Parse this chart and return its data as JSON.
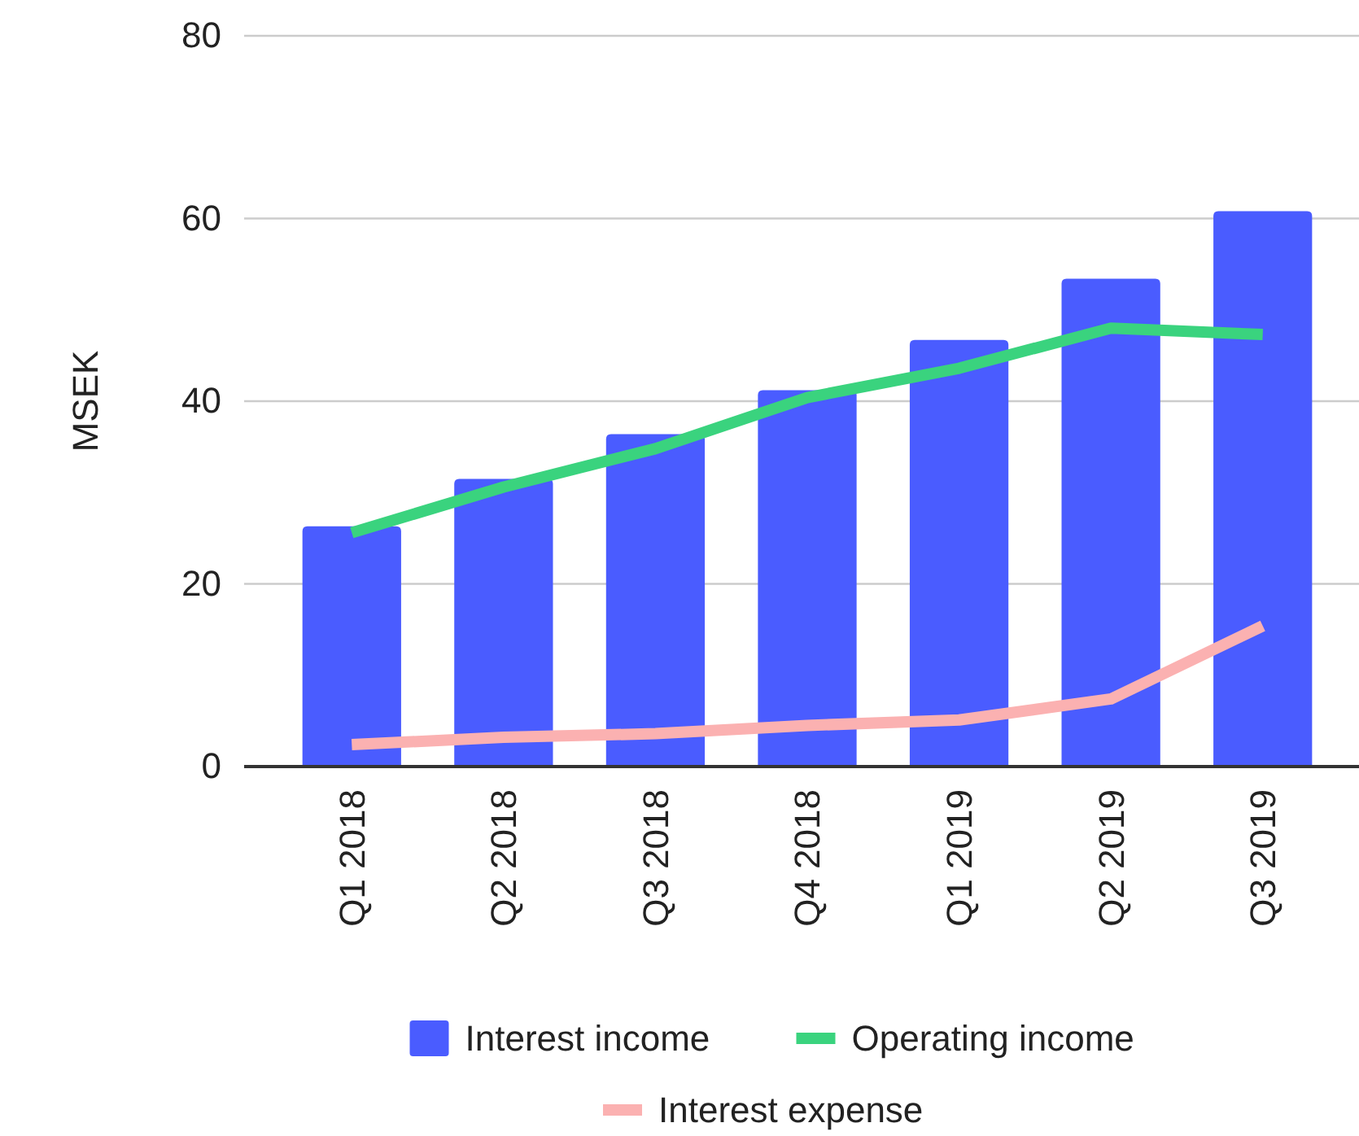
{
  "chart_data": {
    "type": "bar",
    "ylabel": "MSEK",
    "categories": [
      "Q1 2018",
      "Q2 2018",
      "Q3 2018",
      "Q4 2018",
      "Q1 2019",
      "Q2 2019",
      "Q3 2019"
    ],
    "series": [
      {
        "name": "Interest income",
        "color": "#4a5cff",
        "values": [
          26.3,
          31.5,
          36.4,
          41.2,
          46.7,
          53.4,
          60.8
        ]
      },
      {
        "name": "Operating income",
        "type": "line",
        "color": "#3ad37e",
        "values": [
          25.6,
          30.6,
          34.8,
          40.4,
          43.6,
          48.0,
          47.3
        ]
      },
      {
        "name": "Interest expense",
        "type": "line",
        "color": "#fbb1b1",
        "values": [
          2.4,
          3.2,
          3.6,
          4.5,
          5.1,
          7.4,
          15.4
        ]
      }
    ],
    "ylim": [
      0,
      80
    ],
    "yticks": [
      0,
      20,
      40,
      60,
      80
    ],
    "grid": "y",
    "legend": "bottom"
  }
}
